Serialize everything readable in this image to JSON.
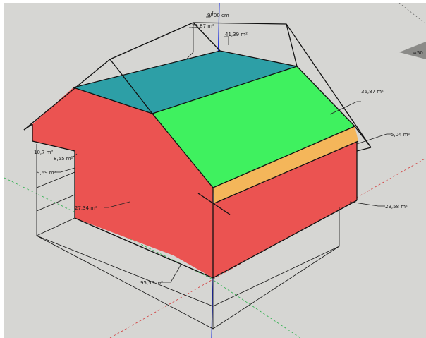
{
  "viewport": {
    "background": "#d6d6d3"
  },
  "colors": {
    "wall": "#eb5351",
    "roof_green": "#3ff15f",
    "roof_teal": "#2d9fa6",
    "trim_orange": "#f4b65a",
    "edge": "#111111",
    "axis_blue": "#2233dd",
    "axis_red": "#d23c3c",
    "axis_green": "#2bb04a"
  },
  "labels": {
    "ridge_length": "9700 cm",
    "gable_area_left": "25,87 m²",
    "roof_teal_area": "41,39 m²",
    "roof_green_area": "36,87 m²",
    "trim_area": "5,04 m²",
    "right_wall_area": "29,58 m²",
    "front_wall_area": "27,34 m²",
    "recess_area_a": "10,7 m²",
    "recess_area_b": "8,55 m²",
    "recess_area_c": "9,69 m²",
    "floor_area": "95,53 m²",
    "offscreen_value": "≈50"
  }
}
